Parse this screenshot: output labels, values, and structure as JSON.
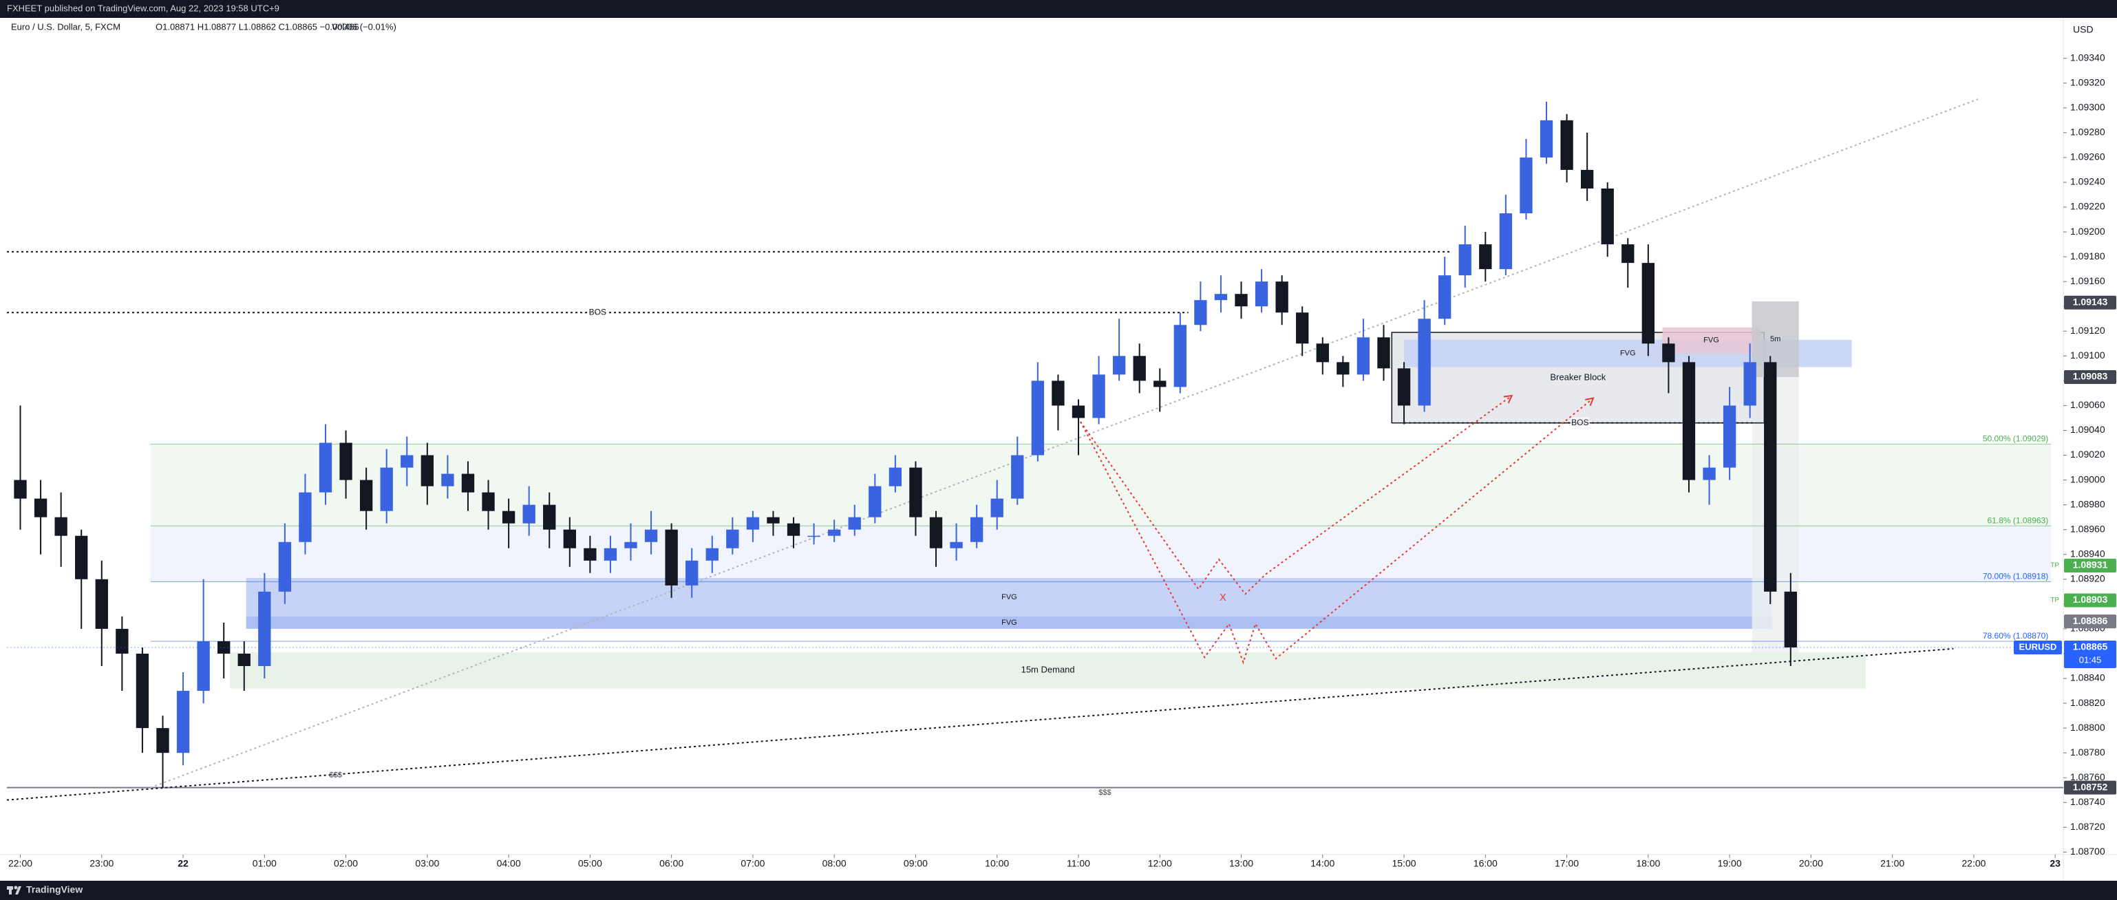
{
  "header": "FXHEET published on TradingView.com, Aug 22, 2023 19:58 UTC+9",
  "footer": "TradingView",
  "chart_data": {
    "type": "candlestick",
    "title": "Euro / U.S. Dollar, 5, FXCM",
    "ohlc_legend": "O1.08871 H1.08877 L1.08862 C1.08865 −0.00006 (−0.01%)",
    "volume": "Vol466",
    "axis_unit": "USD",
    "up_color": "#3a63e0",
    "down_color": "#131722",
    "grid": false,
    "xlim": [
      -0.66,
      100.4
    ],
    "ylim": [
      1.08698,
      1.09372
    ],
    "open": [
      1.09,
      1.08985,
      1.0897,
      1.08955,
      1.0892,
      1.0888,
      1.0886,
      1.088,
      1.0878,
      1.0883,
      1.0887,
      1.0886,
      1.0885,
      1.0891,
      1.0895,
      1.0899,
      1.0903,
      1.09,
      1.08975,
      1.0901,
      1.0902,
      1.08995,
      1.09005,
      1.0899,
      1.08975,
      1.08965,
      1.0898,
      1.0896,
      1.08945,
      1.08935,
      1.08945,
      1.0895,
      1.0896,
      1.08915,
      1.08935,
      1.08945,
      1.0896,
      1.0897,
      1.08965,
      1.08955,
      1.08955,
      1.0896,
      1.0897,
      1.08995,
      1.0901,
      1.0897,
      1.08945,
      1.0895,
      1.0897,
      1.08985,
      1.0902,
      1.0908,
      1.0906,
      1.0905,
      1.09085,
      1.091,
      1.0908,
      1.09075,
      1.09125,
      1.09145,
      1.0915,
      1.0914,
      1.0916,
      1.09135,
      1.0911,
      1.09095,
      1.09085,
      1.09115,
      1.0909,
      1.0906,
      1.0913,
      1.09165,
      1.0919,
      1.0917,
      1.09215,
      1.0926,
      1.0929,
      1.0925,
      1.09235,
      1.0919,
      1.09175,
      1.0911,
      1.09095,
      1.09,
      1.0901,
      1.0906,
      1.09095,
      1.0891
    ],
    "high": [
      1.0906,
      1.09,
      1.0899,
      1.0896,
      1.08935,
      1.0889,
      1.08865,
      1.0881,
      1.08845,
      1.0892,
      1.08885,
      1.0887,
      1.08925,
      1.08965,
      1.09005,
      1.09045,
      1.0904,
      1.0901,
      1.09025,
      1.09035,
      1.0903,
      1.0902,
      1.09015,
      1.09,
      1.08985,
      1.08995,
      1.0899,
      1.0897,
      1.08955,
      1.08955,
      1.08965,
      1.08975,
      1.08965,
      1.08945,
      1.08955,
      1.0897,
      1.08975,
      1.08975,
      1.0897,
      1.08965,
      1.08968,
      1.0898,
      1.09005,
      1.0902,
      1.09015,
      1.08975,
      1.08965,
      1.0898,
      1.09,
      1.09035,
      1.09095,
      1.09085,
      1.09065,
      1.091,
      1.0913,
      1.0911,
      1.0909,
      1.09135,
      1.0916,
      1.09165,
      1.0916,
      1.0917,
      1.09165,
      1.0914,
      1.09115,
      1.091,
      1.0913,
      1.09125,
      1.09095,
      1.09145,
      1.0918,
      1.09205,
      1.092,
      1.0923,
      1.09275,
      1.09305,
      1.09295,
      1.0928,
      1.0924,
      1.09195,
      1.0919,
      1.09115,
      1.091,
      1.0902,
      1.09075,
      1.0911,
      1.091,
      1.08925
    ],
    "low": [
      1.0896,
      1.0894,
      1.0893,
      1.0888,
      1.0885,
      1.0883,
      1.0878,
      1.08752,
      1.0877,
      1.0882,
      1.0884,
      1.0883,
      1.0884,
      1.089,
      1.0894,
      1.0898,
      1.08985,
      1.0896,
      1.08965,
      1.08995,
      1.0898,
      1.08985,
      1.08975,
      1.0896,
      1.08945,
      1.08955,
      1.08945,
      1.0893,
      1.08925,
      1.08925,
      1.08935,
      1.0894,
      1.08905,
      1.08905,
      1.08925,
      1.0894,
      1.0895,
      1.08955,
      1.08945,
      1.08948,
      1.0895,
      1.08955,
      1.08965,
      1.0899,
      1.08955,
      1.0893,
      1.08935,
      1.08945,
      1.0896,
      1.0898,
      1.09015,
      1.0904,
      1.0902,
      1.09045,
      1.0908,
      1.0907,
      1.09055,
      1.0907,
      1.0912,
      1.09135,
      1.0913,
      1.09135,
      1.09125,
      1.091,
      1.09085,
      1.09075,
      1.0908,
      1.0908,
      1.09045,
      1.09055,
      1.09125,
      1.09155,
      1.0916,
      1.09165,
      1.0921,
      1.09255,
      1.0924,
      1.09225,
      1.0918,
      1.09155,
      1.091,
      1.0907,
      1.0899,
      1.0898,
      1.09,
      1.0905,
      1.089,
      1.0885
    ],
    "close": [
      1.08985,
      1.0897,
      1.08955,
      1.0892,
      1.0888,
      1.0886,
      1.088,
      1.0878,
      1.0883,
      1.0887,
      1.0886,
      1.0885,
      1.0891,
      1.0895,
      1.0899,
      1.0903,
      1.09,
      1.08975,
      1.0901,
      1.0902,
      1.08995,
      1.09005,
      1.0899,
      1.08975,
      1.08965,
      1.0898,
      1.0896,
      1.08945,
      1.08935,
      1.08945,
      1.0895,
      1.0896,
      1.08915,
      1.08935,
      1.08945,
      1.0896,
      1.0897,
      1.08965,
      1.08955,
      1.08955,
      1.0896,
      1.0897,
      1.08995,
      1.0901,
      1.0897,
      1.08945,
      1.0895,
      1.0897,
      1.08985,
      1.0902,
      1.0908,
      1.0906,
      1.0905,
      1.09085,
      1.091,
      1.0908,
      1.09075,
      1.09125,
      1.09145,
      1.0915,
      1.0914,
      1.0916,
      1.09135,
      1.0911,
      1.09095,
      1.09085,
      1.09115,
      1.0909,
      1.0906,
      1.0913,
      1.09165,
      1.0919,
      1.0917,
      1.09215,
      1.0926,
      1.0929,
      1.0925,
      1.09235,
      1.0919,
      1.09175,
      1.0911,
      1.09095,
      1.09,
      1.0901,
      1.0906,
      1.09095,
      1.0891,
      1.08865
    ],
    "xticks": [
      {
        "value": 0,
        "label": "22:00"
      },
      {
        "value": 4,
        "label": "23:00"
      },
      {
        "value": 8,
        "label": "22"
      },
      {
        "value": 12,
        "label": "01:00"
      },
      {
        "value": 16,
        "label": "02:00"
      },
      {
        "value": 20,
        "label": "03:00"
      },
      {
        "value": 24,
        "label": "04:00"
      },
      {
        "value": 28,
        "label": "05:00"
      },
      {
        "value": 32,
        "label": "06:00"
      },
      {
        "value": 36,
        "label": "07:00"
      },
      {
        "value": 40,
        "label": "08:00"
      },
      {
        "value": 44,
        "label": "09:00"
      },
      {
        "value": 48,
        "label": "10:00"
      },
      {
        "value": 52,
        "label": "11:00"
      },
      {
        "value": 56,
        "label": "12:00"
      },
      {
        "value": 60,
        "label": "13:00"
      },
      {
        "value": 64,
        "label": "14:00"
      },
      {
        "value": 68,
        "label": "15:00"
      },
      {
        "value": 72,
        "label": "16:00"
      },
      {
        "value": 76,
        "label": "17:00"
      },
      {
        "value": 80,
        "label": "18:00"
      },
      {
        "value": 84,
        "label": "19:00"
      },
      {
        "value": 88,
        "label": "20:00"
      },
      {
        "value": 92,
        "label": "21:00"
      },
      {
        "value": 96,
        "label": "22:00"
      },
      {
        "value": 100,
        "label": "23"
      }
    ],
    "yticks": [
      {
        "value": 1.0934,
        "label": "1.09340"
      },
      {
        "value": 1.0932,
        "label": "1.09320"
      },
      {
        "value": 1.093,
        "label": "1.09300"
      },
      {
        "value": 1.0928,
        "label": "1.09280"
      },
      {
        "value": 1.0926,
        "label": "1.09260"
      },
      {
        "value": 1.0924,
        "label": "1.09240"
      },
      {
        "value": 1.0922,
        "label": "1.09220"
      },
      {
        "value": 1.092,
        "label": "1.09200"
      },
      {
        "value": 1.0918,
        "label": "1.09180"
      },
      {
        "value": 1.0916,
        "label": "1.09160"
      },
      {
        "value": 1.0914,
        "label": "1.09140"
      },
      {
        "value": 1.0912,
        "label": "1.09120"
      },
      {
        "value": 1.091,
        "label": "1.09100"
      },
      {
        "value": 1.0908,
        "label": "1.09080"
      },
      {
        "value": 1.0906,
        "label": "1.09060"
      },
      {
        "value": 1.0904,
        "label": "1.09040"
      },
      {
        "value": 1.0902,
        "label": "1.09020"
      },
      {
        "value": 1.09,
        "label": "1.09000"
      },
      {
        "value": 1.0898,
        "label": "1.08980"
      },
      {
        "value": 1.0896,
        "label": "1.08960"
      },
      {
        "value": 1.0894,
        "label": "1.08940"
      },
      {
        "value": 1.0892,
        "label": "1.08920"
      },
      {
        "value": 1.089,
        "label": "1.08900"
      },
      {
        "value": 1.0888,
        "label": "1.08880"
      },
      {
        "value": 1.0886,
        "label": "1.08860"
      },
      {
        "value": 1.0884,
        "label": "1.08840"
      },
      {
        "value": 1.0882,
        "label": "1.08820"
      },
      {
        "value": 1.088,
        "label": "1.08800"
      },
      {
        "value": 1.0878,
        "label": "1.08780"
      },
      {
        "value": 1.0876,
        "label": "1.08760"
      },
      {
        "value": 1.0874,
        "label": "1.08740"
      },
      {
        "value": 1.0872,
        "label": "1.08720"
      },
      {
        "value": 1.087,
        "label": "1.08700"
      }
    ],
    "zones": [
      {
        "x": [
          6.4,
          99.8
        ],
        "y": [
          1.08963,
          1.09029
        ],
        "color": "#eef6ee"
      },
      {
        "x": [
          6.4,
          99.8
        ],
        "y": [
          1.08918,
          1.08963
        ],
        "color": "#eef2fb"
      },
      {
        "x": [
          10.3,
          90.7
        ],
        "y": [
          1.08832,
          1.08861
        ],
        "color": "#e4f0e4",
        "label": "15m Demand"
      },
      {
        "x": [
          11.1,
          86.1
        ],
        "y": [
          1.0889,
          1.08921
        ],
        "color": "#bccbf5",
        "label": "FVG"
      },
      {
        "x": [
          11.1,
          86.1
        ],
        "y": [
          1.0888,
          1.0889
        ],
        "color": "#9fb4f0",
        "label": "FVG"
      },
      {
        "x": [
          85.1,
          87.4
        ],
        "y": [
          1.08861,
          1.09083
        ],
        "color": "#eceef1"
      },
      {
        "x": [
          67.4,
          85.7
        ],
        "y": [
          1.09046,
          1.09119
        ],
        "color": "#e4e5e9",
        "border": "#131722",
        "label": "Breaker Block"
      },
      {
        "x": [
          68.0,
          90.0
        ],
        "y": [
          1.09091,
          1.09113
        ],
        "color": "#c4d1f6",
        "label": "FVG"
      },
      {
        "x": [
          80.7,
          85.5
        ],
        "y": [
          1.09102,
          1.09123
        ],
        "color": "#e6c6d2",
        "label": "FVG"
      },
      {
        "x": [
          85.1,
          87.4
        ],
        "y": [
          1.09083,
          1.09144
        ],
        "color": "#c5c8cf",
        "label": "5m"
      }
    ],
    "lines": [
      {
        "from": [
          -0.66,
          1.09184
        ],
        "to": [
          70.3,
          1.09184
        ],
        "color": "#131722",
        "style": "dotted"
      },
      {
        "from": [
          -0.66,
          1.09135
        ],
        "to": [
          57.4,
          1.09135
        ],
        "color": "#131722",
        "style": "dotted",
        "label": "BOS"
      },
      {
        "from": [
          68.0,
          1.09046
        ],
        "to": [
          85.3,
          1.09046
        ],
        "color": "#131722",
        "style": "dotted",
        "label": "BOS"
      },
      {
        "from": [
          -0.66,
          1.08752
        ],
        "to": [
          100.4,
          1.08752
        ],
        "color": "#787b86",
        "style": "solid"
      },
      {
        "from": [
          -0.66,
          1.08742
        ],
        "to": [
          95.0,
          1.08864
        ],
        "color": "#131722",
        "style": "dotted"
      },
      {
        "from": [
          6.4,
          1.08752
        ],
        "to": [
          96.2,
          1.09307
        ],
        "color": "#b2b5be",
        "style": "dotted"
      }
    ],
    "fibs": [
      {
        "label": "50.00% (1.09029)",
        "price": 1.09029,
        "color": "#4caf50"
      },
      {
        "label": "61.8% (1.08963)",
        "price": 1.08963,
        "color": "#4caf50"
      },
      {
        "label": "70.00% (1.08918)",
        "price": 1.08918,
        "color": "#2962ff"
      },
      {
        "label": "78.60% (1.08870)",
        "price": 1.0887,
        "color": "#2962ff"
      }
    ],
    "paths": [
      {
        "color": "#e53935",
        "points": [
          [
            52.1,
            1.09047
          ],
          [
            57.9,
            1.08912
          ],
          [
            58.9,
            1.08936
          ],
          [
            60.2,
            1.08908
          ],
          [
            61.2,
            1.08924
          ],
          [
            73.3,
            1.09068
          ]
        ]
      },
      {
        "color": "#e53935",
        "points": [
          [
            52.1,
            1.09047
          ],
          [
            58.2,
            1.08857
          ],
          [
            59.4,
            1.08884
          ],
          [
            60.1,
            1.08853
          ],
          [
            60.7,
            1.08884
          ],
          [
            61.7,
            1.08856
          ],
          [
            77.3,
            1.09066
          ]
        ]
      }
    ],
    "texts": [
      {
        "text": "$$$",
        "at": [
          15.5,
          1.08762
        ],
        "color": "#434651"
      },
      {
        "text": "$$$",
        "at": [
          53.3,
          1.08748
        ],
        "color": "#434651"
      },
      {
        "text": "X",
        "at": [
          59.1,
          1.08905
        ],
        "color": "#e53935"
      }
    ],
    "price_labels": [
      {
        "price": 1.09143,
        "color": "#434651"
      },
      {
        "price": 1.09083,
        "color": "#434651"
      },
      {
        "price": 1.08931,
        "color": "#4caf50",
        "tag": "TP"
      },
      {
        "price": 1.08903,
        "color": "#4caf50",
        "tag": "TP"
      },
      {
        "price": 1.08886,
        "color": "#787b86"
      },
      {
        "price": 1.08752,
        "color": "#434651"
      }
    ],
    "last_price": {
      "name": "EURUSD",
      "price": 1.08865,
      "countdown": "01:45",
      "color": "#2962ff"
    }
  }
}
